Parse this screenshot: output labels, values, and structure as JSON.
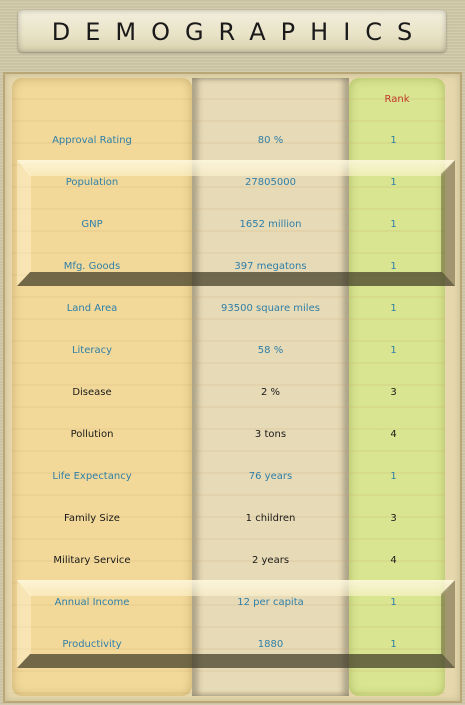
{
  "title": "DEMOGRAPHICS",
  "rank_header": "Rank",
  "rows": [
    {
      "label": "Approval Rating",
      "value": "80 %",
      "rank": "1",
      "highlight": true
    },
    {
      "label": "Population",
      "value": "27805000",
      "rank": "1",
      "highlight": true
    },
    {
      "label": "GNP",
      "value": "1652 million",
      "rank": "1",
      "highlight": true
    },
    {
      "label": "Mfg. Goods",
      "value": "397 megatons",
      "rank": "1",
      "highlight": true
    },
    {
      "label": "Land Area",
      "value": "93500 square miles",
      "rank": "1",
      "highlight": true
    },
    {
      "label": "Literacy",
      "value": "58 %",
      "rank": "1",
      "highlight": true
    },
    {
      "label": "Disease",
      "value": "2 %",
      "rank": "3",
      "highlight": false
    },
    {
      "label": "Pollution",
      "value": "3 tons",
      "rank": "4",
      "highlight": false
    },
    {
      "label": "Life Expectancy",
      "value": "76 years",
      "rank": "1",
      "highlight": true
    },
    {
      "label": "Family Size",
      "value": "1 children",
      "rank": "3",
      "highlight": false
    },
    {
      "label": "Military Service",
      "value": "2 years",
      "rank": "4",
      "highlight": false
    },
    {
      "label": "Annual Income",
      "value": "12 per capita",
      "rank": "1",
      "highlight": true
    },
    {
      "label": "Productivity",
      "value": "1880",
      "rank": "1",
      "highlight": true
    }
  ],
  "colors": {
    "rank_one_text": "#2f7fa8",
    "other_text": "#1a1a1a",
    "rank_header": "#c0392b"
  }
}
